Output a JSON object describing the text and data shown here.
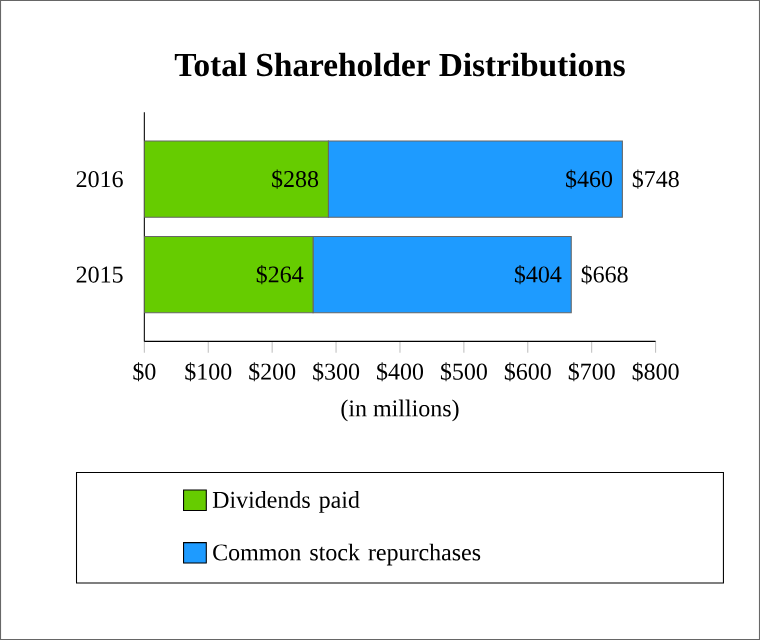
{
  "chart_data": {
    "type": "bar",
    "orientation": "horizontal",
    "stacked": true,
    "title": "Total Shareholder Distributions",
    "xlabel": "(in millions)",
    "categories": [
      "2016",
      "2015"
    ],
    "series": [
      {
        "name": "Dividends paid",
        "color": "#66cc00",
        "values": [
          288,
          264
        ],
        "value_labels": [
          "$288",
          "$264"
        ]
      },
      {
        "name": "Common stock repurchases",
        "color": "#1e9bff",
        "values": [
          460,
          404
        ],
        "value_labels": [
          "$460",
          "$404"
        ]
      }
    ],
    "totals": [
      "$748",
      "$668"
    ],
    "xlim": [
      0,
      800
    ],
    "xticks": [
      {
        "value": 0,
        "label": "$0"
      },
      {
        "value": 100,
        "label": "$100"
      },
      {
        "value": 200,
        "label": "$200"
      },
      {
        "value": 300,
        "label": "$300"
      },
      {
        "value": 400,
        "label": "$400"
      },
      {
        "value": 500,
        "label": "$500"
      },
      {
        "value": 600,
        "label": "$600"
      },
      {
        "value": 700,
        "label": "$700"
      },
      {
        "value": 800,
        "label": "$800"
      }
    ],
    "legend": "bottom"
  }
}
